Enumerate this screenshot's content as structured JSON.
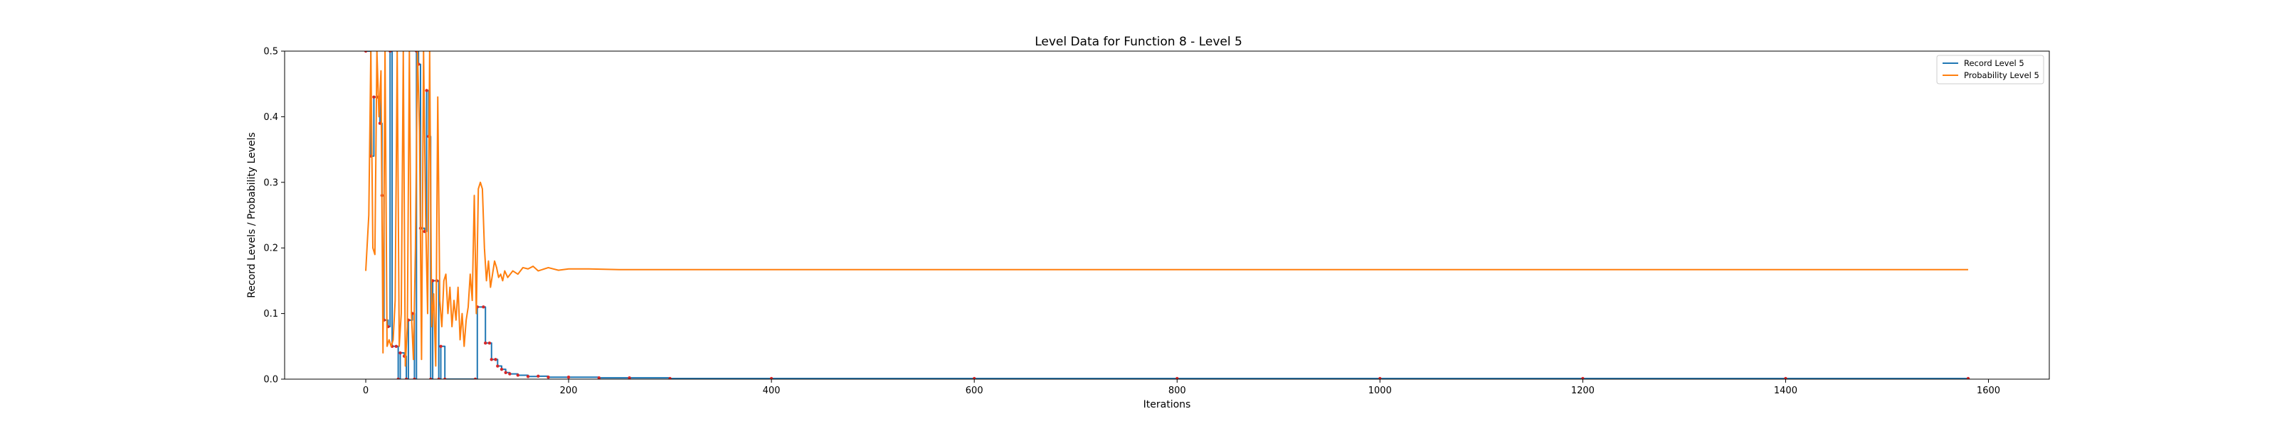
{
  "chart_data": {
    "type": "line",
    "title": "Level Data for Function 8 - Level 5",
    "xlabel": "Iterations",
    "ylabel": "Record Levels / Probability Levels",
    "xlim": [
      -80,
      1660
    ],
    "ylim": [
      0,
      0.5
    ],
    "xticks": [
      0,
      200,
      400,
      600,
      800,
      1000,
      1200,
      1400,
      1600
    ],
    "yticks": [
      0.0,
      0.1,
      0.2,
      0.3,
      0.4,
      0.5
    ],
    "xtick_labels": [
      "0",
      "200",
      "400",
      "600",
      "800",
      "1000",
      "1200",
      "1400",
      "1600"
    ],
    "ytick_labels": [
      "0.0",
      "0.1",
      "0.2",
      "0.3",
      "0.4",
      "0.5"
    ],
    "grid": false,
    "legend_position": "top-right",
    "series": [
      {
        "name": "Record Level 5",
        "color": "#1f77b4",
        "style": "step",
        "points": [
          [
            0,
            0.5
          ],
          [
            5,
            0.34
          ],
          [
            8,
            0.43
          ],
          [
            12,
            0.43
          ],
          [
            14,
            0.39
          ],
          [
            16,
            0.28
          ],
          [
            18,
            0.09
          ],
          [
            22,
            0.08
          ],
          [
            24,
            0.5
          ],
          [
            26,
            0.05
          ],
          [
            30,
            0.05
          ],
          [
            32,
            0.0
          ],
          [
            34,
            0.04
          ],
          [
            38,
            0.035
          ],
          [
            40,
            0.0
          ],
          [
            42,
            0.09
          ],
          [
            46,
            0.1
          ],
          [
            48,
            0.0
          ],
          [
            50,
            0.5
          ],
          [
            52,
            0.48
          ],
          [
            54,
            0.23
          ],
          [
            58,
            0.225
          ],
          [
            60,
            0.44
          ],
          [
            62,
            0.37
          ],
          [
            64,
            0.0
          ],
          [
            66,
            0.15
          ],
          [
            70,
            0.15
          ],
          [
            72,
            0.0
          ],
          [
            74,
            0.05
          ],
          [
            78,
            0.0
          ],
          [
            108,
            0.0
          ],
          [
            110,
            0.11
          ],
          [
            116,
            0.11
          ],
          [
            118,
            0.055
          ],
          [
            122,
            0.055
          ],
          [
            124,
            0.03
          ],
          [
            128,
            0.03
          ],
          [
            130,
            0.02
          ],
          [
            134,
            0.015
          ],
          [
            138,
            0.01
          ],
          [
            142,
            0.008
          ],
          [
            150,
            0.006
          ],
          [
            160,
            0.004
          ],
          [
            170,
            0.0045
          ],
          [
            180,
            0.003
          ],
          [
            200,
            0.003
          ],
          [
            230,
            0.002
          ],
          [
            260,
            0.002
          ],
          [
            300,
            0.001
          ],
          [
            400,
            0.001
          ],
          [
            600,
            0.001
          ],
          [
            800,
            0.001
          ],
          [
            1000,
            0.001
          ],
          [
            1200,
            0.001
          ],
          [
            1400,
            0.001
          ],
          [
            1580,
            0.001
          ]
        ]
      },
      {
        "name": "Probability Level 5",
        "color": "#ff7f0e",
        "style": "line",
        "points": [
          [
            0,
            0.165
          ],
          [
            3,
            0.25
          ],
          [
            5,
            0.5
          ],
          [
            7,
            0.2
          ],
          [
            9,
            0.19
          ],
          [
            11,
            0.5
          ],
          [
            13,
            0.4
          ],
          [
            15,
            0.47
          ],
          [
            17,
            0.04
          ],
          [
            19,
            0.5
          ],
          [
            21,
            0.05
          ],
          [
            23,
            0.06
          ],
          [
            25,
            0.05
          ],
          [
            27,
            0.06
          ],
          [
            29,
            0.12
          ],
          [
            31,
            0.5
          ],
          [
            33,
            0.05
          ],
          [
            35,
            0.1
          ],
          [
            37,
            0.5
          ],
          [
            39,
            0.02
          ],
          [
            41,
            0.08
          ],
          [
            43,
            0.5
          ],
          [
            45,
            0.1
          ],
          [
            47,
            0.03
          ],
          [
            49,
            0.2
          ],
          [
            51,
            0.5
          ],
          [
            53,
            0.38
          ],
          [
            55,
            0.03
          ],
          [
            57,
            0.5
          ],
          [
            59,
            0.25
          ],
          [
            61,
            0.1
          ],
          [
            63,
            0.5
          ],
          [
            65,
            0.08
          ],
          [
            67,
            0.13
          ],
          [
            69,
            0.02
          ],
          [
            71,
            0.43
          ],
          [
            73,
            0.12
          ],
          [
            75,
            0.08
          ],
          [
            77,
            0.15
          ],
          [
            79,
            0.16
          ],
          [
            81,
            0.1
          ],
          [
            83,
            0.14
          ],
          [
            85,
            0.08
          ],
          [
            87,
            0.12
          ],
          [
            89,
            0.09
          ],
          [
            91,
            0.14
          ],
          [
            93,
            0.06
          ],
          [
            95,
            0.1
          ],
          [
            97,
            0.05
          ],
          [
            99,
            0.09
          ],
          [
            101,
            0.11
          ],
          [
            103,
            0.16
          ],
          [
            105,
            0.12
          ],
          [
            107,
            0.28
          ],
          [
            109,
            0.1
          ],
          [
            111,
            0.29
          ],
          [
            113,
            0.3
          ],
          [
            115,
            0.29
          ],
          [
            117,
            0.2
          ],
          [
            119,
            0.15
          ],
          [
            121,
            0.18
          ],
          [
            123,
            0.14
          ],
          [
            125,
            0.16
          ],
          [
            127,
            0.18
          ],
          [
            129,
            0.17
          ],
          [
            131,
            0.155
          ],
          [
            133,
            0.16
          ],
          [
            135,
            0.15
          ],
          [
            137,
            0.165
          ],
          [
            140,
            0.155
          ],
          [
            145,
            0.165
          ],
          [
            150,
            0.16
          ],
          [
            155,
            0.17
          ],
          [
            160,
            0.168
          ],
          [
            165,
            0.172
          ],
          [
            170,
            0.165
          ],
          [
            180,
            0.17
          ],
          [
            190,
            0.166
          ],
          [
            200,
            0.168
          ],
          [
            220,
            0.168
          ],
          [
            250,
            0.167
          ],
          [
            300,
            0.167
          ],
          [
            400,
            0.167
          ],
          [
            600,
            0.167
          ],
          [
            800,
            0.167
          ],
          [
            1000,
            0.167
          ],
          [
            1200,
            0.167
          ],
          [
            1400,
            0.167
          ],
          [
            1580,
            0.167
          ]
        ]
      }
    ]
  }
}
